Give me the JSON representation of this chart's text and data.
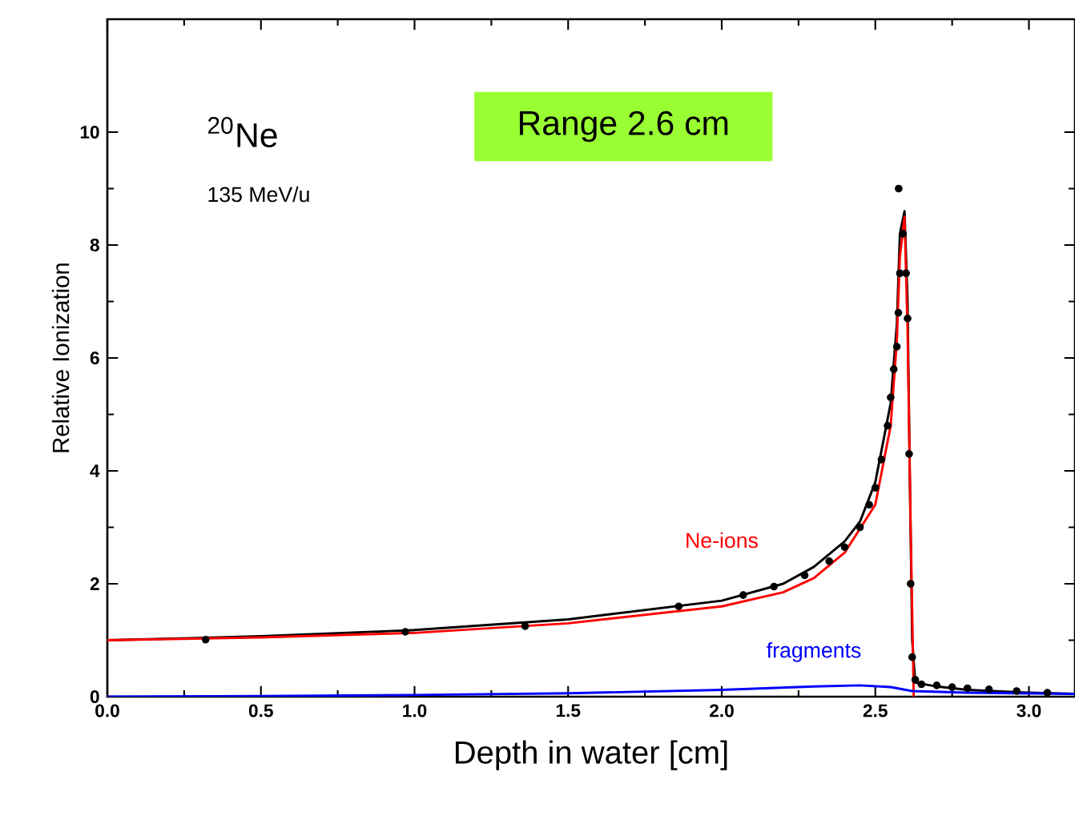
{
  "chart_data": {
    "type": "line",
    "xlabel": "Depth in water [cm]",
    "ylabel": "Relative Ionization",
    "annotations": [
      "$^{20}$Ne",
      "135 MeV/u",
      "Range 2.6 cm"
    ],
    "xlim": [
      0,
      3.15
    ],
    "ylim": [
      0,
      12
    ],
    "xticks": [
      {
        "value": 0,
        "label": "0.0"
      },
      {
        "value": 0.5,
        "label": "0.5"
      },
      {
        "value": 1,
        "label": "1.0"
      },
      {
        "value": 1.5,
        "label": "1.5"
      },
      {
        "value": 2,
        "label": "2.0"
      },
      {
        "value": 2.5,
        "label": "2.5"
      },
      {
        "value": 3,
        "label": "3.0"
      }
    ],
    "yticks": [
      0,
      2,
      4,
      6,
      8,
      10
    ],
    "legend": false,
    "series": [
      {
        "color": "#000000",
        "x": [
          0,
          0.5,
          1.0,
          1.5,
          2.0,
          2.2,
          2.3,
          2.4,
          2.45,
          2.5,
          2.55,
          2.57,
          2.58,
          2.595,
          2.605,
          2.612,
          2.62,
          2.63,
          2.7,
          2.8,
          3.0,
          3.15
        ],
        "values": [
          1.0,
          1.07,
          1.18,
          1.37,
          1.7,
          2.0,
          2.3,
          2.75,
          3.1,
          3.8,
          5.2,
          6.6,
          8.2,
          8.6,
          7.0,
          4.0,
          1.0,
          0.25,
          0.18,
          0.12,
          0.07,
          0.05
        ]
      },
      {
        "name": "Ne-ions",
        "color": "#ff0000",
        "x": [
          0,
          0.5,
          1.0,
          1.5,
          2.0,
          2.2,
          2.3,
          2.4,
          2.5,
          2.55,
          2.57,
          2.58,
          2.595,
          2.605,
          2.615,
          2.625
        ],
        "values": [
          1.0,
          1.05,
          1.13,
          1.3,
          1.6,
          1.85,
          2.1,
          2.55,
          3.4,
          4.8,
          6.3,
          7.8,
          8.5,
          6.5,
          3.0,
          0
        ]
      },
      {
        "name": "fragments",
        "color": "#0000ff",
        "x": [
          0,
          0.5,
          1.0,
          1.5,
          2.0,
          2.3,
          2.45,
          2.55,
          2.62,
          2.8,
          3.15
        ],
        "values": [
          0,
          0.01,
          0.03,
          0.06,
          0.12,
          0.18,
          0.2,
          0.17,
          0.1,
          0.07,
          0.05
        ]
      },
      {
        "type": "scatter",
        "marker": "circle",
        "color": "#000000",
        "x": [
          0.32,
          0.97,
          1.36,
          1.86,
          2.07,
          2.17,
          2.27,
          2.35,
          2.4,
          2.45,
          2.48,
          2.5,
          2.52,
          2.54,
          2.55,
          2.56,
          2.57,
          2.575,
          2.58,
          2.576,
          2.59,
          2.6,
          2.605,
          2.61,
          2.615,
          2.62,
          2.63,
          2.65,
          2.7,
          2.75,
          2.8,
          2.87,
          2.96,
          3.06
        ],
        "values": [
          1.01,
          1.15,
          1.25,
          1.6,
          1.8,
          1.95,
          2.15,
          2.4,
          2.65,
          3.0,
          3.4,
          3.7,
          4.2,
          4.8,
          5.3,
          5.8,
          6.2,
          6.8,
          7.5,
          9.0,
          8.2,
          7.5,
          6.7,
          4.3,
          2.0,
          0.7,
          0.3,
          0.22,
          0.2,
          0.17,
          0.15,
          0.13,
          0.1,
          0.07
        ]
      }
    ]
  }
}
